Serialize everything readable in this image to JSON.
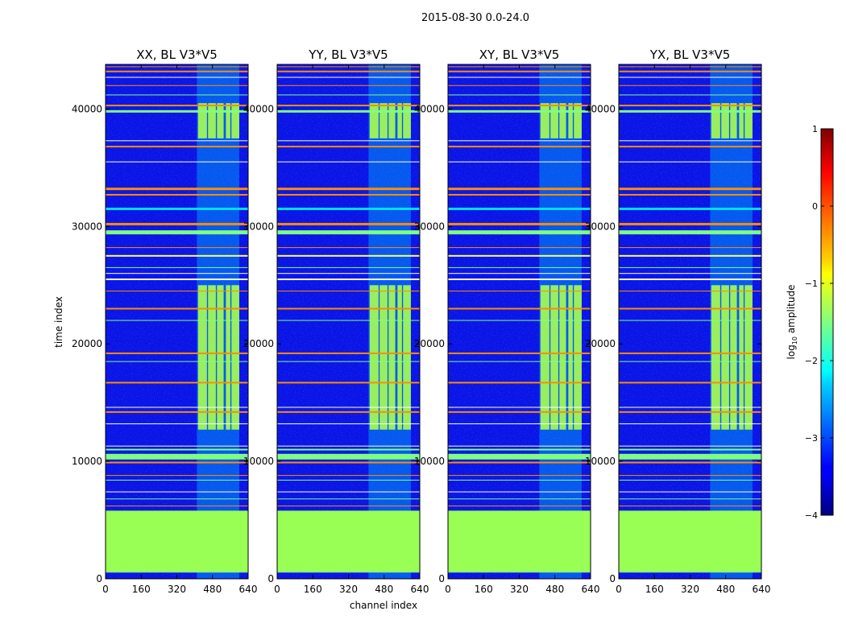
{
  "chart_data": {
    "type": "heatmap",
    "suptitle": "2015-08-30 0.0-24.0",
    "xlabel": "channel index",
    "ylabel": "time index",
    "xlim": [
      0,
      640
    ],
    "ylim": [
      0,
      43800
    ],
    "xticks": [
      0,
      160,
      320,
      480,
      640
    ],
    "yticks": [
      0,
      10000,
      20000,
      30000,
      40000
    ],
    "panels": [
      {
        "title": "XX, BL V3*V5"
      },
      {
        "title": "YY, BL V3*V5"
      },
      {
        "title": "XY, BL V3*V5"
      },
      {
        "title": "YX, BL V3*V5"
      }
    ],
    "colormap": "jet",
    "colorbar": {
      "label_base": "log",
      "label_sub": "10",
      "label_rest": " amplitude",
      "range": [
        -4,
        1
      ],
      "ticks": [
        1,
        0,
        -1,
        -2,
        -3,
        -4
      ],
      "tick_labels": [
        "1",
        "0",
        "−1",
        "−2",
        "−3",
        "−4"
      ]
    },
    "features": {
      "flagged_block_time": [
        600,
        5800
      ],
      "flagged_value": -1,
      "rfi_band_channels": [
        410,
        600
      ],
      "bright_rfi_times": [
        [
          12700,
          25000
        ],
        [
          37500,
          40500
        ]
      ]
    }
  }
}
